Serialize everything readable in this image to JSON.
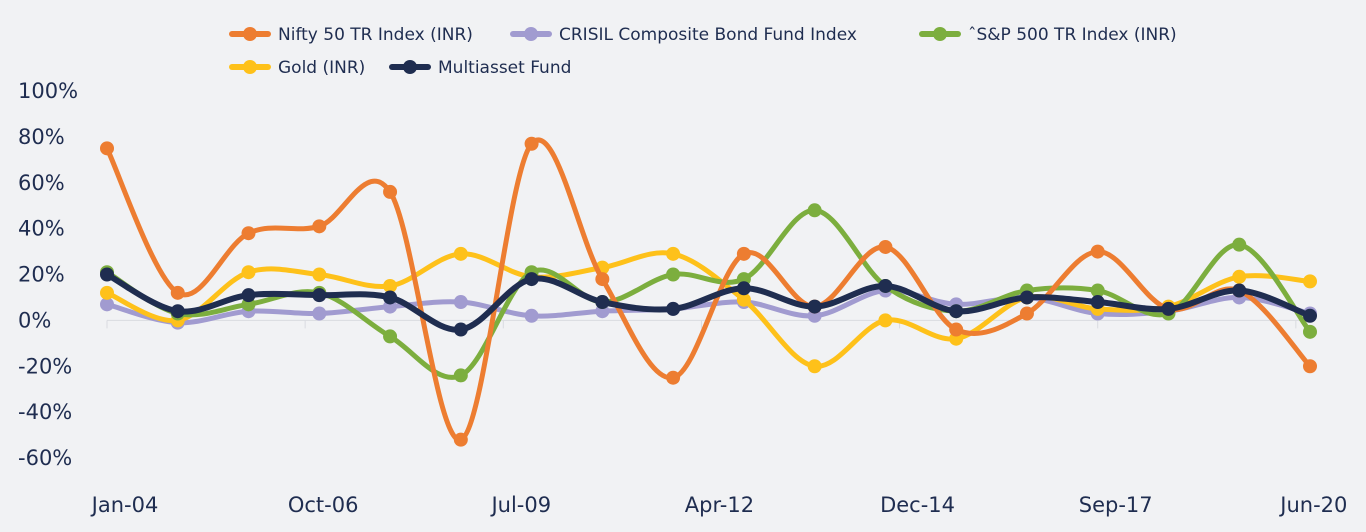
{
  "chart_data": {
    "type": "line",
    "title": "",
    "xlabel": "",
    "ylabel": "",
    "ylim": [
      -60,
      100
    ],
    "y_ticks": [
      "100%",
      "80%",
      "60%",
      "40%",
      "20%",
      "0%",
      "-20%",
      "-40%",
      "-60%"
    ],
    "y_tick_values": [
      100,
      80,
      60,
      40,
      20,
      0,
      -20,
      -40,
      -60
    ],
    "x_tick_labels": [
      "Jan-04",
      "Oct-06",
      "Jul-09",
      "Apr-12",
      "Dec-14",
      "Sep-17",
      "Jun-20"
    ],
    "x_tick_indices": [
      0,
      2.8,
      5.6,
      8.4,
      11.2,
      14,
      16.8
    ],
    "grid": false,
    "legend_position": "top",
    "series": [
      {
        "name": "Nifty 50 TR Index (INR)",
        "color": "#ed7d31",
        "values": [
          75,
          12,
          38,
          41,
          56,
          -52,
          77,
          18,
          -25,
          29,
          6,
          32,
          -4,
          3,
          30,
          5,
          13,
          -20
        ]
      },
      {
        "name": "CRISIL Composite Bond Fund Index",
        "color": "#a19bd0",
        "values": [
          7,
          -1,
          4,
          3,
          6,
          8,
          2,
          4,
          5,
          8,
          2,
          13,
          7,
          10,
          3,
          4,
          10,
          3
        ]
      },
      {
        "name": "ˆS&P 500 TR Index (INR)",
        "color": "#7cae3e",
        "values": [
          21,
          3,
          7,
          12,
          -7,
          -24,
          21,
          8,
          20,
          18,
          48,
          15,
          4,
          13,
          13,
          3,
          33,
          -5
        ]
      },
      {
        "name": "Gold (INR)",
        "color": "#fec11a",
        "values": [
          12,
          0,
          21,
          20,
          15,
          29,
          19,
          23,
          29,
          9,
          -20,
          0,
          -8,
          10,
          5,
          6,
          19,
          17
        ]
      },
      {
        "name": "Multiasset Fund",
        "color": "#1f2d50",
        "values": [
          20,
          4,
          11,
          11,
          10,
          -4,
          18,
          8,
          5,
          14,
          6,
          15,
          4,
          10,
          8,
          5,
          13,
          2
        ]
      }
    ]
  }
}
